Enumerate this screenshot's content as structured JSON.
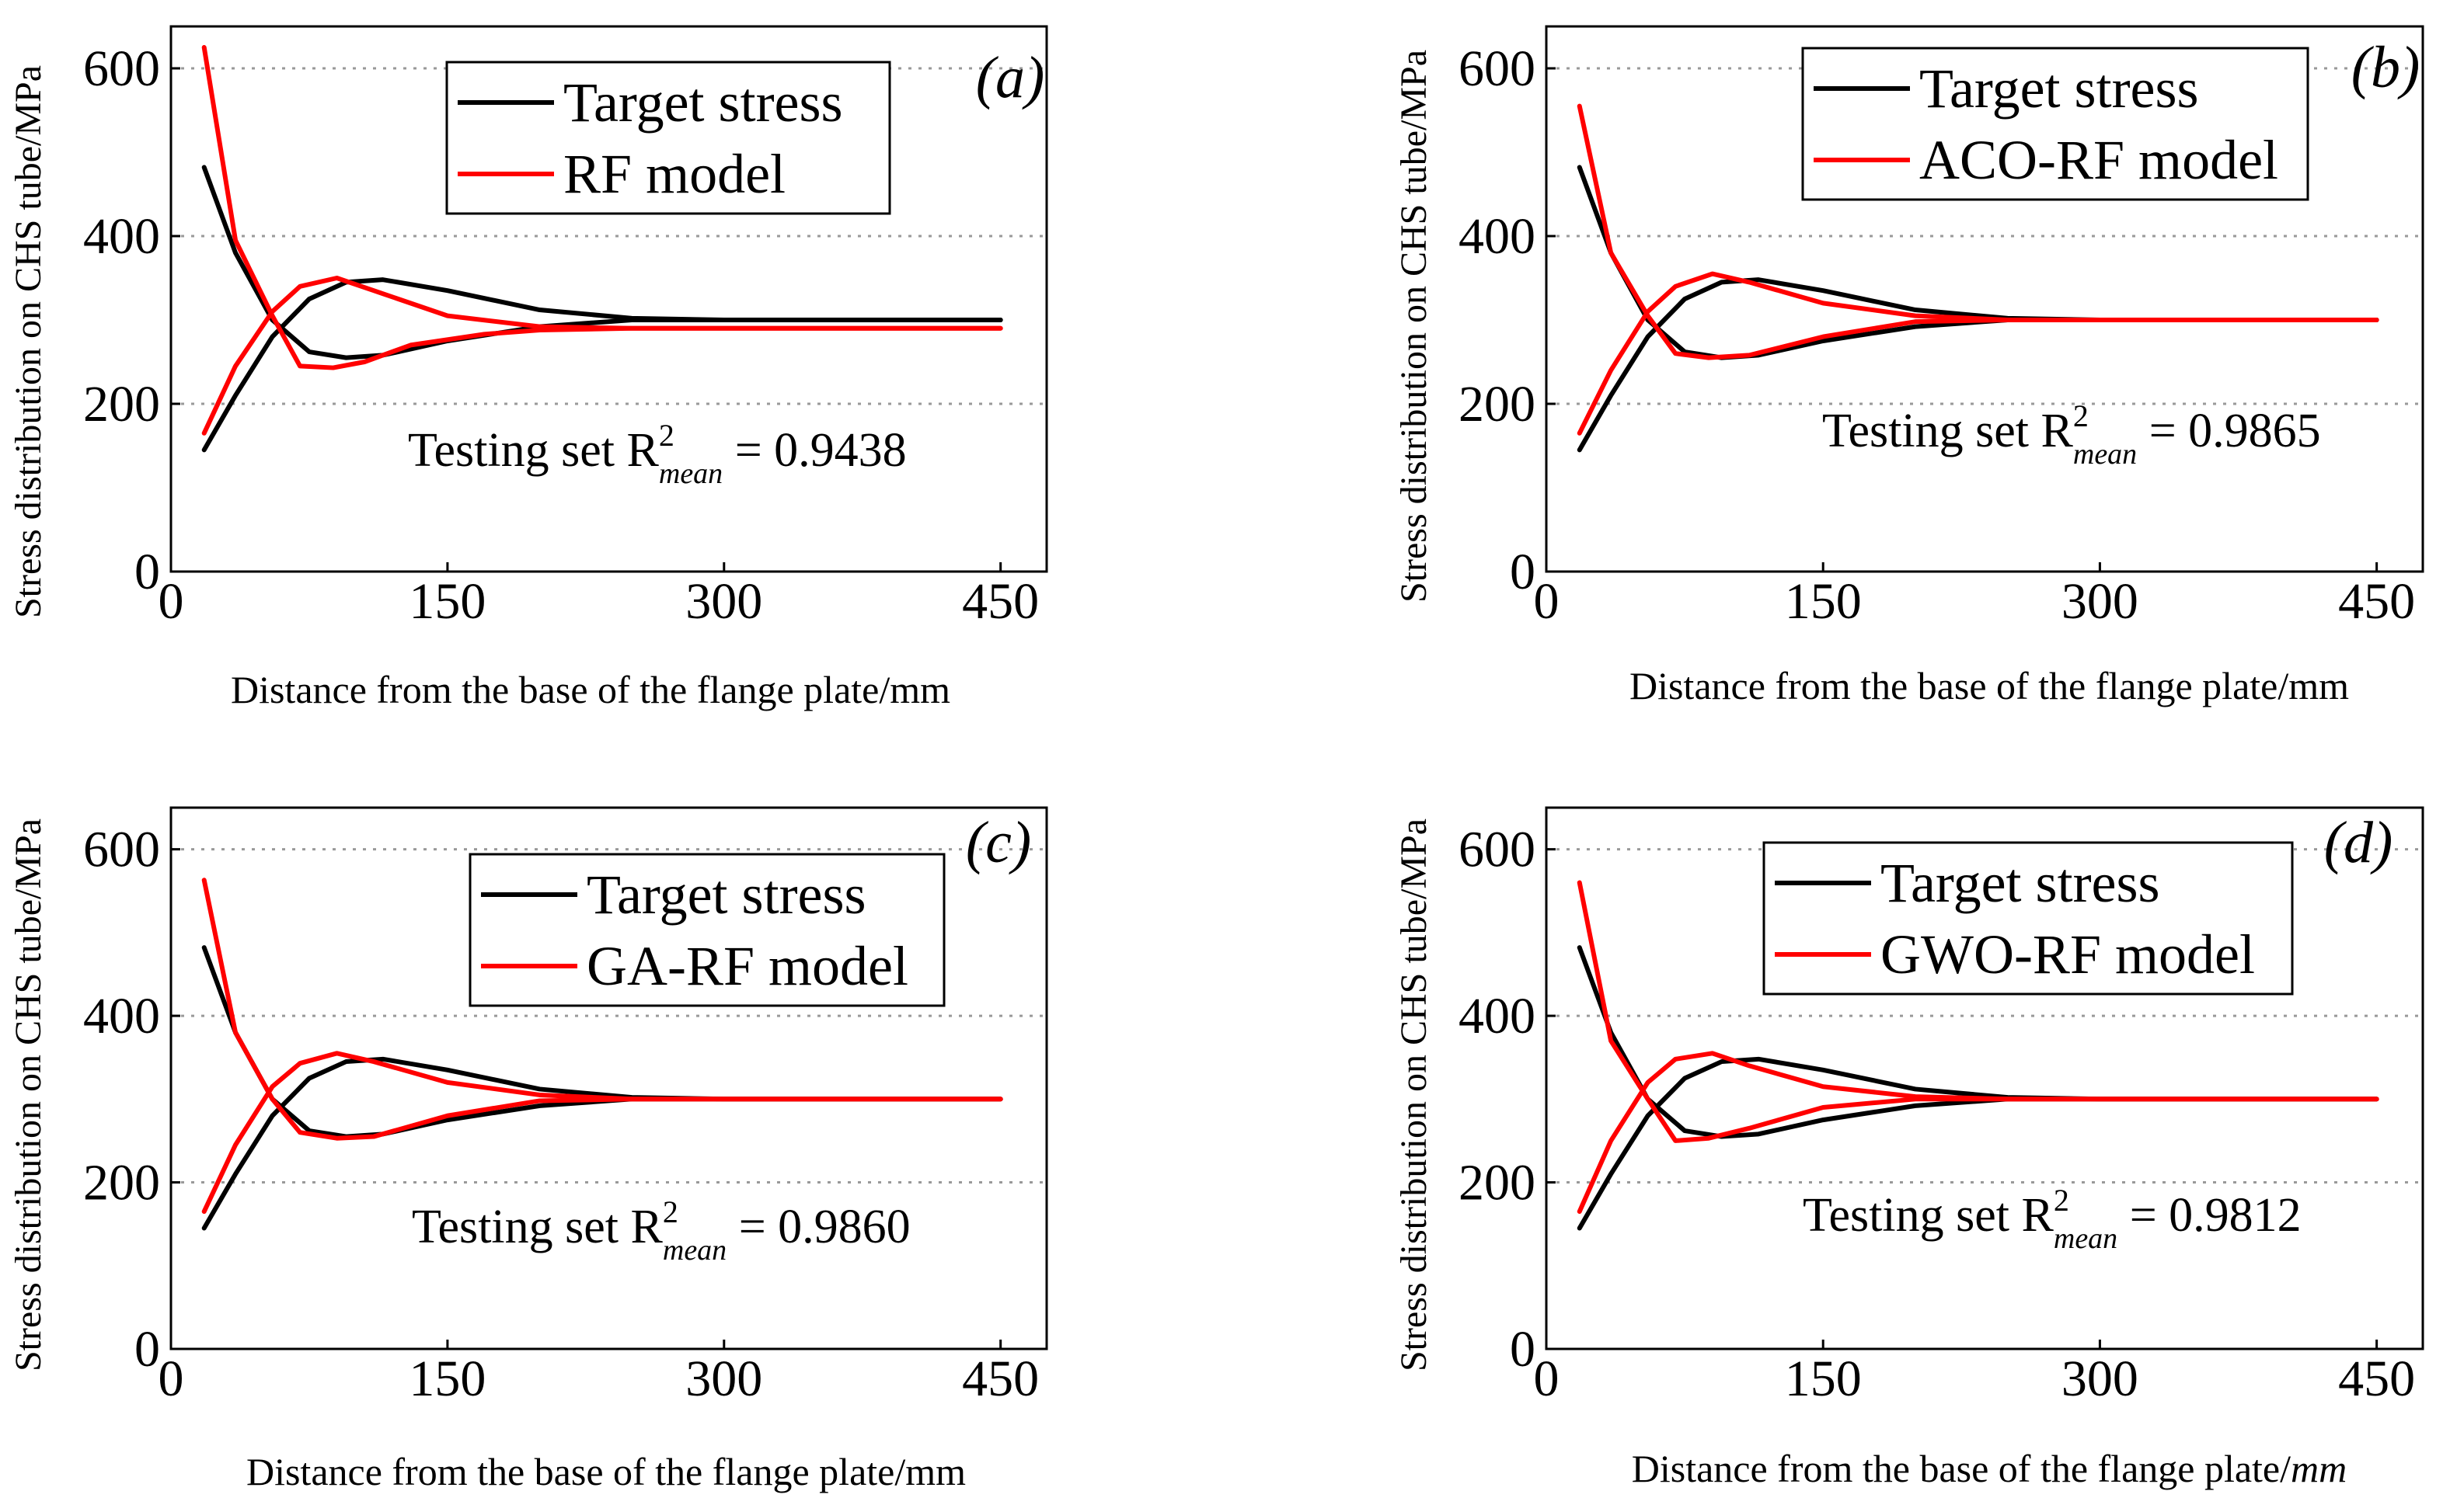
{
  "figure": {
    "panels": [
      "a",
      "b",
      "c",
      "d"
    ]
  },
  "chart_data": [
    {
      "type": "line",
      "panel_label": "(a)",
      "xlabel": "Distance from the base of the flange plate/mm",
      "ylabel": "Stress distribution on CHS tube/MPa",
      "xlim": [
        0,
        475
      ],
      "ylim": [
        0,
        650
      ],
      "xticks": [
        0,
        150,
        300,
        450
      ],
      "yticks": [
        0,
        200,
        400,
        600
      ],
      "grid": "horizontal dotted",
      "legend_position": "top-right",
      "annotation": {
        "prefix": "Testing set  R",
        "superscript": "2",
        "subscript": "mean",
        "suffix": " = 0.9438"
      },
      "series": [
        {
          "name": "Target  stress",
          "color": "#000000",
          "x": [
            18,
            35,
            55,
            75,
            95,
            115,
            150,
            200,
            250,
            300,
            350,
            400,
            450
          ],
          "y": [
            482,
            380,
            300,
            262,
            255,
            258,
            275,
            292,
            300,
            300,
            300,
            300,
            300
          ]
        },
        {
          "name": "Target  stress",
          "color": "#000000",
          "x": [
            18,
            35,
            55,
            75,
            95,
            115,
            150,
            200,
            250,
            300,
            350,
            400,
            450
          ],
          "y": [
            145,
            210,
            280,
            325,
            345,
            348,
            335,
            312,
            302,
            300,
            300,
            300,
            300
          ]
        },
        {
          "name": "RF model",
          "color": "#ff0000",
          "x": [
            18,
            35,
            55,
            70,
            88,
            105,
            130,
            170,
            200,
            250,
            300,
            350,
            400,
            450
          ],
          "y": [
            625,
            395,
            305,
            245,
            243,
            250,
            270,
            283,
            288,
            290,
            290,
            290,
            290,
            290
          ]
        },
        {
          "name": "RF model",
          "color": "#ff0000",
          "x": [
            18,
            35,
            55,
            70,
            90,
            110,
            150,
            200,
            250,
            300,
            350,
            400,
            450
          ],
          "y": [
            165,
            245,
            310,
            340,
            350,
            335,
            305,
            292,
            290,
            290,
            290,
            290,
            290
          ]
        }
      ],
      "legend": [
        "Target  stress",
        "RF model"
      ]
    },
    {
      "type": "line",
      "panel_label": "(b)",
      "xlabel": "Distance from the base of the flange plate/mm",
      "ylabel": "Stress distribution on CHS tube/MPa",
      "xlim": [
        0,
        475
      ],
      "ylim": [
        0,
        650
      ],
      "xticks": [
        0,
        150,
        300,
        450
      ],
      "yticks": [
        0,
        200,
        400,
        600
      ],
      "grid": "horizontal dotted",
      "legend_position": "top-right",
      "annotation": {
        "prefix": "Testing set  R",
        "superscript": "2",
        "subscript": "mean",
        "suffix": " = 0.9865"
      },
      "series": [
        {
          "name": "Target  stress",
          "color": "#000000",
          "x": [
            18,
            35,
            55,
            75,
            95,
            115,
            150,
            200,
            250,
            300,
            350,
            400,
            450
          ],
          "y": [
            482,
            380,
            300,
            262,
            255,
            258,
            275,
            292,
            300,
            300,
            300,
            300,
            300
          ]
        },
        {
          "name": "Target  stress",
          "color": "#000000",
          "x": [
            18,
            35,
            55,
            75,
            95,
            115,
            150,
            200,
            250,
            300,
            350,
            400,
            450
          ],
          "y": [
            145,
            210,
            280,
            325,
            345,
            348,
            335,
            312,
            302,
            300,
            300,
            300,
            300
          ]
        },
        {
          "name": "ACO-RF model",
          "color": "#ff0000",
          "x": [
            18,
            35,
            55,
            70,
            88,
            110,
            150,
            200,
            250,
            300,
            350,
            400,
            450
          ],
          "y": [
            555,
            380,
            305,
            260,
            255,
            258,
            280,
            298,
            300,
            300,
            300,
            300,
            300
          ]
        },
        {
          "name": "ACO-RF model",
          "color": "#ff0000",
          "x": [
            18,
            35,
            55,
            70,
            90,
            110,
            150,
            200,
            250,
            300,
            350,
            400,
            450
          ],
          "y": [
            165,
            240,
            310,
            340,
            355,
            345,
            320,
            305,
            300,
            300,
            300,
            300,
            300
          ]
        }
      ],
      "legend": [
        "Target  stress",
        "ACO-RF model"
      ]
    },
    {
      "type": "line",
      "panel_label": "(c)",
      "xlabel": "Distance from the base of the flange plate/mm",
      "ylabel": "Stress distribution on CHS tube/MPa",
      "xlim": [
        0,
        475
      ],
      "ylim": [
        0,
        650
      ],
      "xticks": [
        0,
        150,
        300,
        450
      ],
      "yticks": [
        0,
        200,
        400,
        600
      ],
      "grid": "horizontal dotted",
      "legend_position": "center-right",
      "annotation": {
        "prefix": "Testing set  R",
        "superscript": "2",
        "subscript": "mean",
        "suffix": " = 0.9860"
      },
      "series": [
        {
          "name": "Target  stress",
          "color": "#000000",
          "x": [
            18,
            35,
            55,
            75,
            95,
            115,
            150,
            200,
            250,
            300,
            350,
            400,
            450
          ],
          "y": [
            482,
            380,
            300,
            262,
            255,
            258,
            275,
            292,
            300,
            300,
            300,
            300,
            300
          ]
        },
        {
          "name": "Target  stress",
          "color": "#000000",
          "x": [
            18,
            35,
            55,
            75,
            95,
            115,
            150,
            200,
            250,
            300,
            350,
            400,
            450
          ],
          "y": [
            145,
            210,
            280,
            325,
            345,
            348,
            335,
            312,
            302,
            300,
            300,
            300,
            300
          ]
        },
        {
          "name": "GA-RF model",
          "color": "#ff0000",
          "x": [
            18,
            35,
            55,
            70,
            90,
            110,
            150,
            200,
            250,
            300,
            350,
            400,
            450
          ],
          "y": [
            563,
            380,
            300,
            260,
            253,
            255,
            280,
            298,
            300,
            300,
            300,
            300,
            300
          ]
        },
        {
          "name": "GA-RF model",
          "color": "#ff0000",
          "x": [
            18,
            35,
            55,
            70,
            90,
            110,
            150,
            200,
            250,
            300,
            350,
            400,
            450
          ],
          "y": [
            165,
            245,
            315,
            343,
            355,
            345,
            320,
            305,
            300,
            300,
            300,
            300,
            300
          ]
        }
      ],
      "legend": [
        "Target  stress",
        "GA-RF model"
      ]
    },
    {
      "type": "line",
      "panel_label": "(d)",
      "xlabel": "Distance from the base of the flange plate/",
      "xlabel_unit": "mm",
      "ylabel": "Stress distribution on CHS tube/MPa",
      "xlim": [
        0,
        475
      ],
      "ylim": [
        0,
        650
      ],
      "xticks": [
        0,
        150,
        300,
        450
      ],
      "yticks": [
        0,
        200,
        400,
        600
      ],
      "grid": "horizontal dotted",
      "legend_position": "top-right",
      "annotation": {
        "prefix": "Testing set  R",
        "superscript": "2",
        "subscript": "mean",
        "suffix": " = 0.9812"
      },
      "series": [
        {
          "name": "Target  stress",
          "color": "#000000",
          "x": [
            18,
            35,
            55,
            75,
            95,
            115,
            150,
            200,
            250,
            300,
            350,
            400,
            450
          ],
          "y": [
            482,
            380,
            300,
            262,
            255,
            258,
            275,
            292,
            300,
            300,
            300,
            300,
            300
          ]
        },
        {
          "name": "Target  stress",
          "color": "#000000",
          "x": [
            18,
            35,
            55,
            75,
            95,
            115,
            150,
            200,
            250,
            300,
            350,
            400,
            450
          ],
          "y": [
            145,
            210,
            280,
            325,
            345,
            348,
            335,
            312,
            302,
            300,
            300,
            300,
            300
          ]
        },
        {
          "name": "GWO-RF model",
          "color": "#ff0000",
          "x": [
            18,
            35,
            55,
            70,
            88,
            110,
            150,
            200,
            250,
            300,
            350,
            400,
            450
          ],
          "y": [
            560,
            370,
            300,
            250,
            253,
            265,
            290,
            300,
            300,
            300,
            300,
            300,
            300
          ]
        },
        {
          "name": "GWO-RF model",
          "color": "#ff0000",
          "x": [
            18,
            35,
            55,
            70,
            90,
            110,
            150,
            200,
            250,
            300,
            350,
            400,
            450
          ],
          "y": [
            165,
            250,
            320,
            348,
            355,
            340,
            315,
            303,
            300,
            300,
            300,
            300,
            300
          ]
        }
      ],
      "legend": [
        "Target  stress",
        "GWO-RF model"
      ]
    }
  ]
}
